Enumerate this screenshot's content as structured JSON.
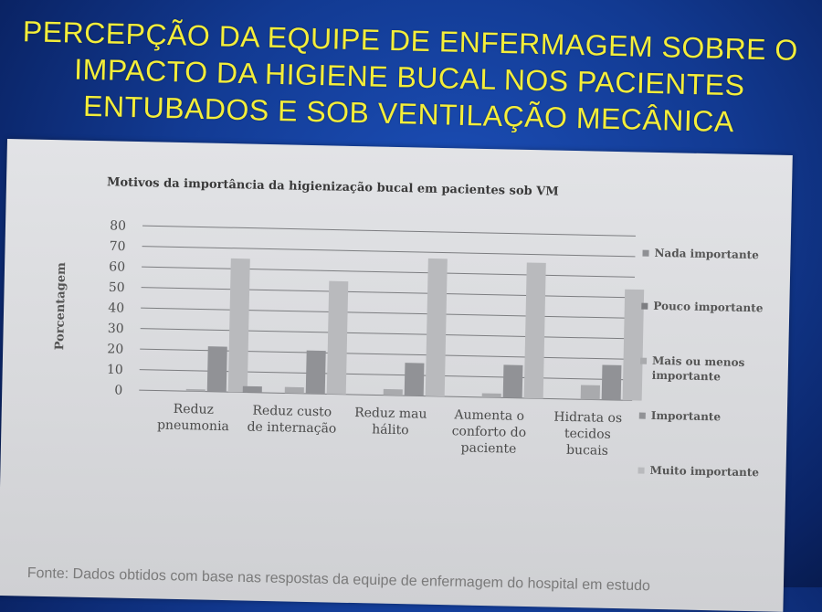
{
  "slide": {
    "title_lines": [
      "PERCEPÇÃO DA EQUIPE DE ENFERMAGEM SOBRE O",
      "IMPACTO DA HIGIENE BUCAL NOS PACIENTES",
      "ENTUBADOS  E SOB VENTILAÇÃO  MECÂNICA"
    ],
    "source_note": "Fonte: Dados obtidos com base nas respostas da equipe de enfermagem do hospital em estudo"
  },
  "chart_data": {
    "type": "bar",
    "title": "Motivos da importância da higienização bucal em pacientes sob VM",
    "xlabel": "",
    "ylabel": "Porcentagem",
    "ylim": [
      0,
      80
    ],
    "yticks": [
      0,
      10,
      20,
      30,
      40,
      50,
      60,
      70,
      80
    ],
    "grid": true,
    "legend_position": "right",
    "categories": [
      [
        "Reduz",
        "pneumonia"
      ],
      [
        "Reduz custo",
        "de internação"
      ],
      [
        "Reduz mau",
        "hálito"
      ],
      [
        "Aumenta o",
        "conforto do",
        "paciente"
      ],
      [
        "Hidrata os",
        "tecidos",
        "bucais"
      ]
    ],
    "series": [
      {
        "name": "Nada importante",
        "values": [
          0,
          3,
          0,
          0,
          0
        ],
        "color": "#8f9094"
      },
      {
        "name": "Pouco importante",
        "values": [
          0,
          0,
          0,
          0,
          0
        ],
        "color": "#7d7e82"
      },
      {
        "name": "Mais ou menos importante",
        "values": [
          1,
          3,
          3,
          2,
          7
        ],
        "color": "#a9aaad"
      },
      {
        "name": "Importante",
        "values": [
          22,
          21,
          16,
          16,
          17
        ],
        "color": "#919296"
      },
      {
        "name": "Muito importante",
        "values": [
          65,
          55,
          67,
          66,
          54
        ],
        "color": "#b9babd"
      }
    ]
  }
}
